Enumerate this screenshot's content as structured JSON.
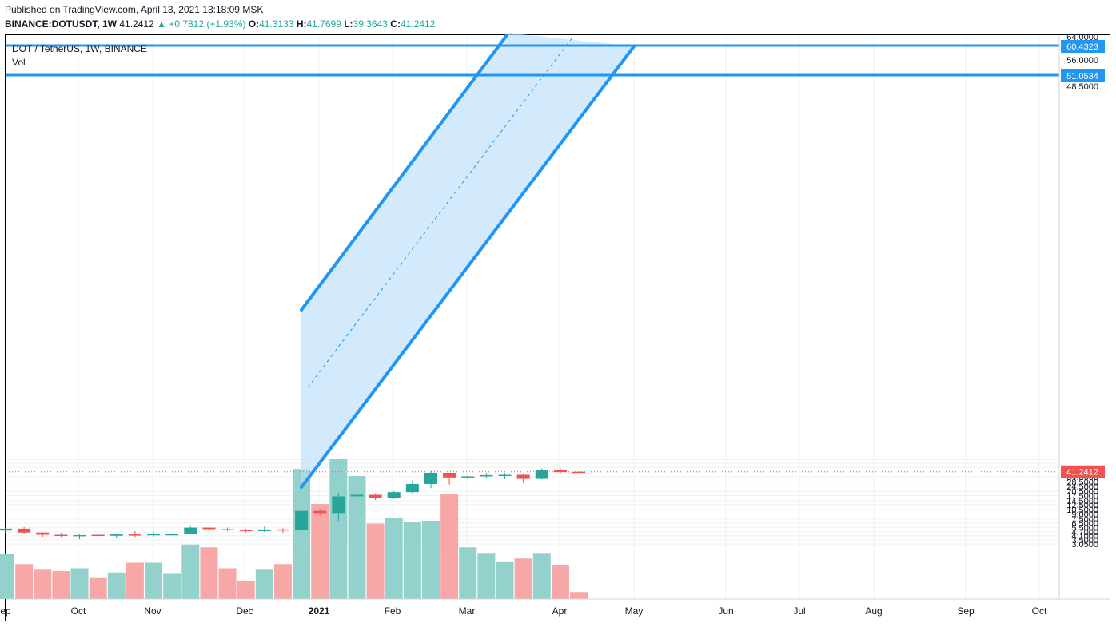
{
  "header": {
    "published": "Published on TradingView.com, April 13, 2021 13:18:09 MSK",
    "symbol": "BINANCE:DOTUSDT, 1W",
    "last": "41.2412",
    "change": "+0.7812 (+1.93%)",
    "o_label": "O:",
    "o_val": "41.3133",
    "h_label": "H:",
    "h_val": "41.7699",
    "l_label": "L:",
    "l_val": "39.3643",
    "c_label": "C:",
    "c_val": "41.2412"
  },
  "legend": {
    "title": "DOT / TetherUS, 1W, BINANCE",
    "volume": "Vol"
  },
  "colors": {
    "up": "#26a69a",
    "down": "#ef5350",
    "up_volume": "#93d2cc",
    "down_volume": "#f7a8a6",
    "channel": "#2196f3",
    "channel_fill": "#bbdefb",
    "level": "#2196f3",
    "last_price": "#ef5350",
    "grid": "#eef0f3"
  },
  "chart_data": {
    "type": "candlestick",
    "scale": "log",
    "ylim": [
      2.8,
      64
    ],
    "y_ticks": [
      "64.0000",
      "56.0000",
      "48.5000",
      "34.5000",
      "28.5000",
      "24.5000",
      "20.5000",
      "17.5000",
      "14.5000",
      "12.5000",
      "10.5000",
      "9.0000",
      "7.5000",
      "6.5000",
      "5.5000",
      "4.7000",
      "4.1000",
      "3.5000",
      "3.0500"
    ],
    "x_ticks": [
      "ep",
      "Oct",
      "Nov",
      "Dec",
      "2021",
      "Feb",
      "Mar",
      "Apr",
      "May",
      "Jun",
      "Jul",
      "Aug",
      "Sep",
      "Oct"
    ],
    "price_labels": {
      "level_high": "60.4323",
      "level_low": "51.0534",
      "last": "41.2412"
    },
    "levels": [
      60.4323,
      51.0534
    ],
    "last_price": 41.2412,
    "candles": [
      {
        "o": 4.95,
        "h": 5.45,
        "l": 4.6,
        "c": 5.3
      },
      {
        "o": 5.3,
        "h": 5.6,
        "l": 4.45,
        "c": 4.6
      },
      {
        "o": 4.6,
        "h": 4.65,
        "l": 3.95,
        "c": 4.25
      },
      {
        "o": 4.25,
        "h": 4.55,
        "l": 3.9,
        "c": 4.15
      },
      {
        "o": 4.15,
        "h": 4.45,
        "l": 3.6,
        "c": 4.2
      },
      {
        "o": 4.25,
        "h": 4.45,
        "l": 3.85,
        "c": 4.1
      },
      {
        "o": 4.1,
        "h": 4.45,
        "l": 3.85,
        "c": 4.3
      },
      {
        "o": 4.3,
        "h": 4.85,
        "l": 3.9,
        "c": 4.2
      },
      {
        "o": 4.2,
        "h": 4.75,
        "l": 3.95,
        "c": 4.35
      },
      {
        "o": 4.35,
        "h": 4.45,
        "l": 4.15,
        "c": 4.35
      },
      {
        "o": 4.35,
        "h": 5.85,
        "l": 4.3,
        "c": 5.5
      },
      {
        "o": 5.5,
        "h": 6.1,
        "l": 4.45,
        "c": 5.2
      },
      {
        "o": 5.2,
        "h": 5.5,
        "l": 4.85,
        "c": 5.1
      },
      {
        "o": 5.1,
        "h": 5.3,
        "l": 4.6,
        "c": 4.85
      },
      {
        "o": 4.85,
        "h": 5.75,
        "l": 4.7,
        "c": 5.15
      },
      {
        "o": 5.15,
        "h": 5.4,
        "l": 4.55,
        "c": 5.1
      },
      {
        "o": 5.1,
        "h": 10.4,
        "l": 5.0,
        "c": 10.05
      },
      {
        "o": 10.05,
        "h": 10.8,
        "l": 8.5,
        "c": 9.3
      },
      {
        "o": 9.3,
        "h": 19.3,
        "l": 7.05,
        "c": 17.0
      },
      {
        "o": 17.0,
        "h": 18.6,
        "l": 14.5,
        "c": 18.0
      },
      {
        "o": 18.0,
        "h": 19.0,
        "l": 14.9,
        "c": 15.8
      },
      {
        "o": 15.8,
        "h": 20.5,
        "l": 15.4,
        "c": 19.8
      },
      {
        "o": 19.8,
        "h": 30.0,
        "l": 19.0,
        "c": 26.6
      },
      {
        "o": 26.6,
        "h": 42.8,
        "l": 22.8,
        "c": 39.8
      },
      {
        "o": 39.8,
        "h": 40.0,
        "l": 26.0,
        "c": 33.6
      },
      {
        "o": 33.6,
        "h": 38.2,
        "l": 31.0,
        "c": 35.0
      },
      {
        "o": 35.0,
        "h": 39.6,
        "l": 33.0,
        "c": 36.6
      },
      {
        "o": 36.5,
        "h": 39.5,
        "l": 31.7,
        "c": 37.0
      },
      {
        "o": 37.0,
        "h": 38.0,
        "l": 27.4,
        "c": 32.0
      },
      {
        "o": 32.0,
        "h": 46.8,
        "l": 31.3,
        "c": 44.6
      },
      {
        "o": 44.6,
        "h": 46.5,
        "l": 37.4,
        "c": 40.7
      },
      {
        "o": 41.3133,
        "h": 41.7699,
        "l": 39.3643,
        "c": 41.2412
      }
    ],
    "volume_relative": [
      0.32,
      0.25,
      0.21,
      0.2,
      0.22,
      0.15,
      0.19,
      0.26,
      0.26,
      0.18,
      0.39,
      0.37,
      0.22,
      0.13,
      0.21,
      0.25,
      0.93,
      0.68,
      1.0,
      0.88,
      0.54,
      0.58,
      0.55,
      0.56,
      0.75,
      0.37,
      0.33,
      0.27,
      0.29,
      0.33,
      0.24,
      0.05
    ]
  }
}
